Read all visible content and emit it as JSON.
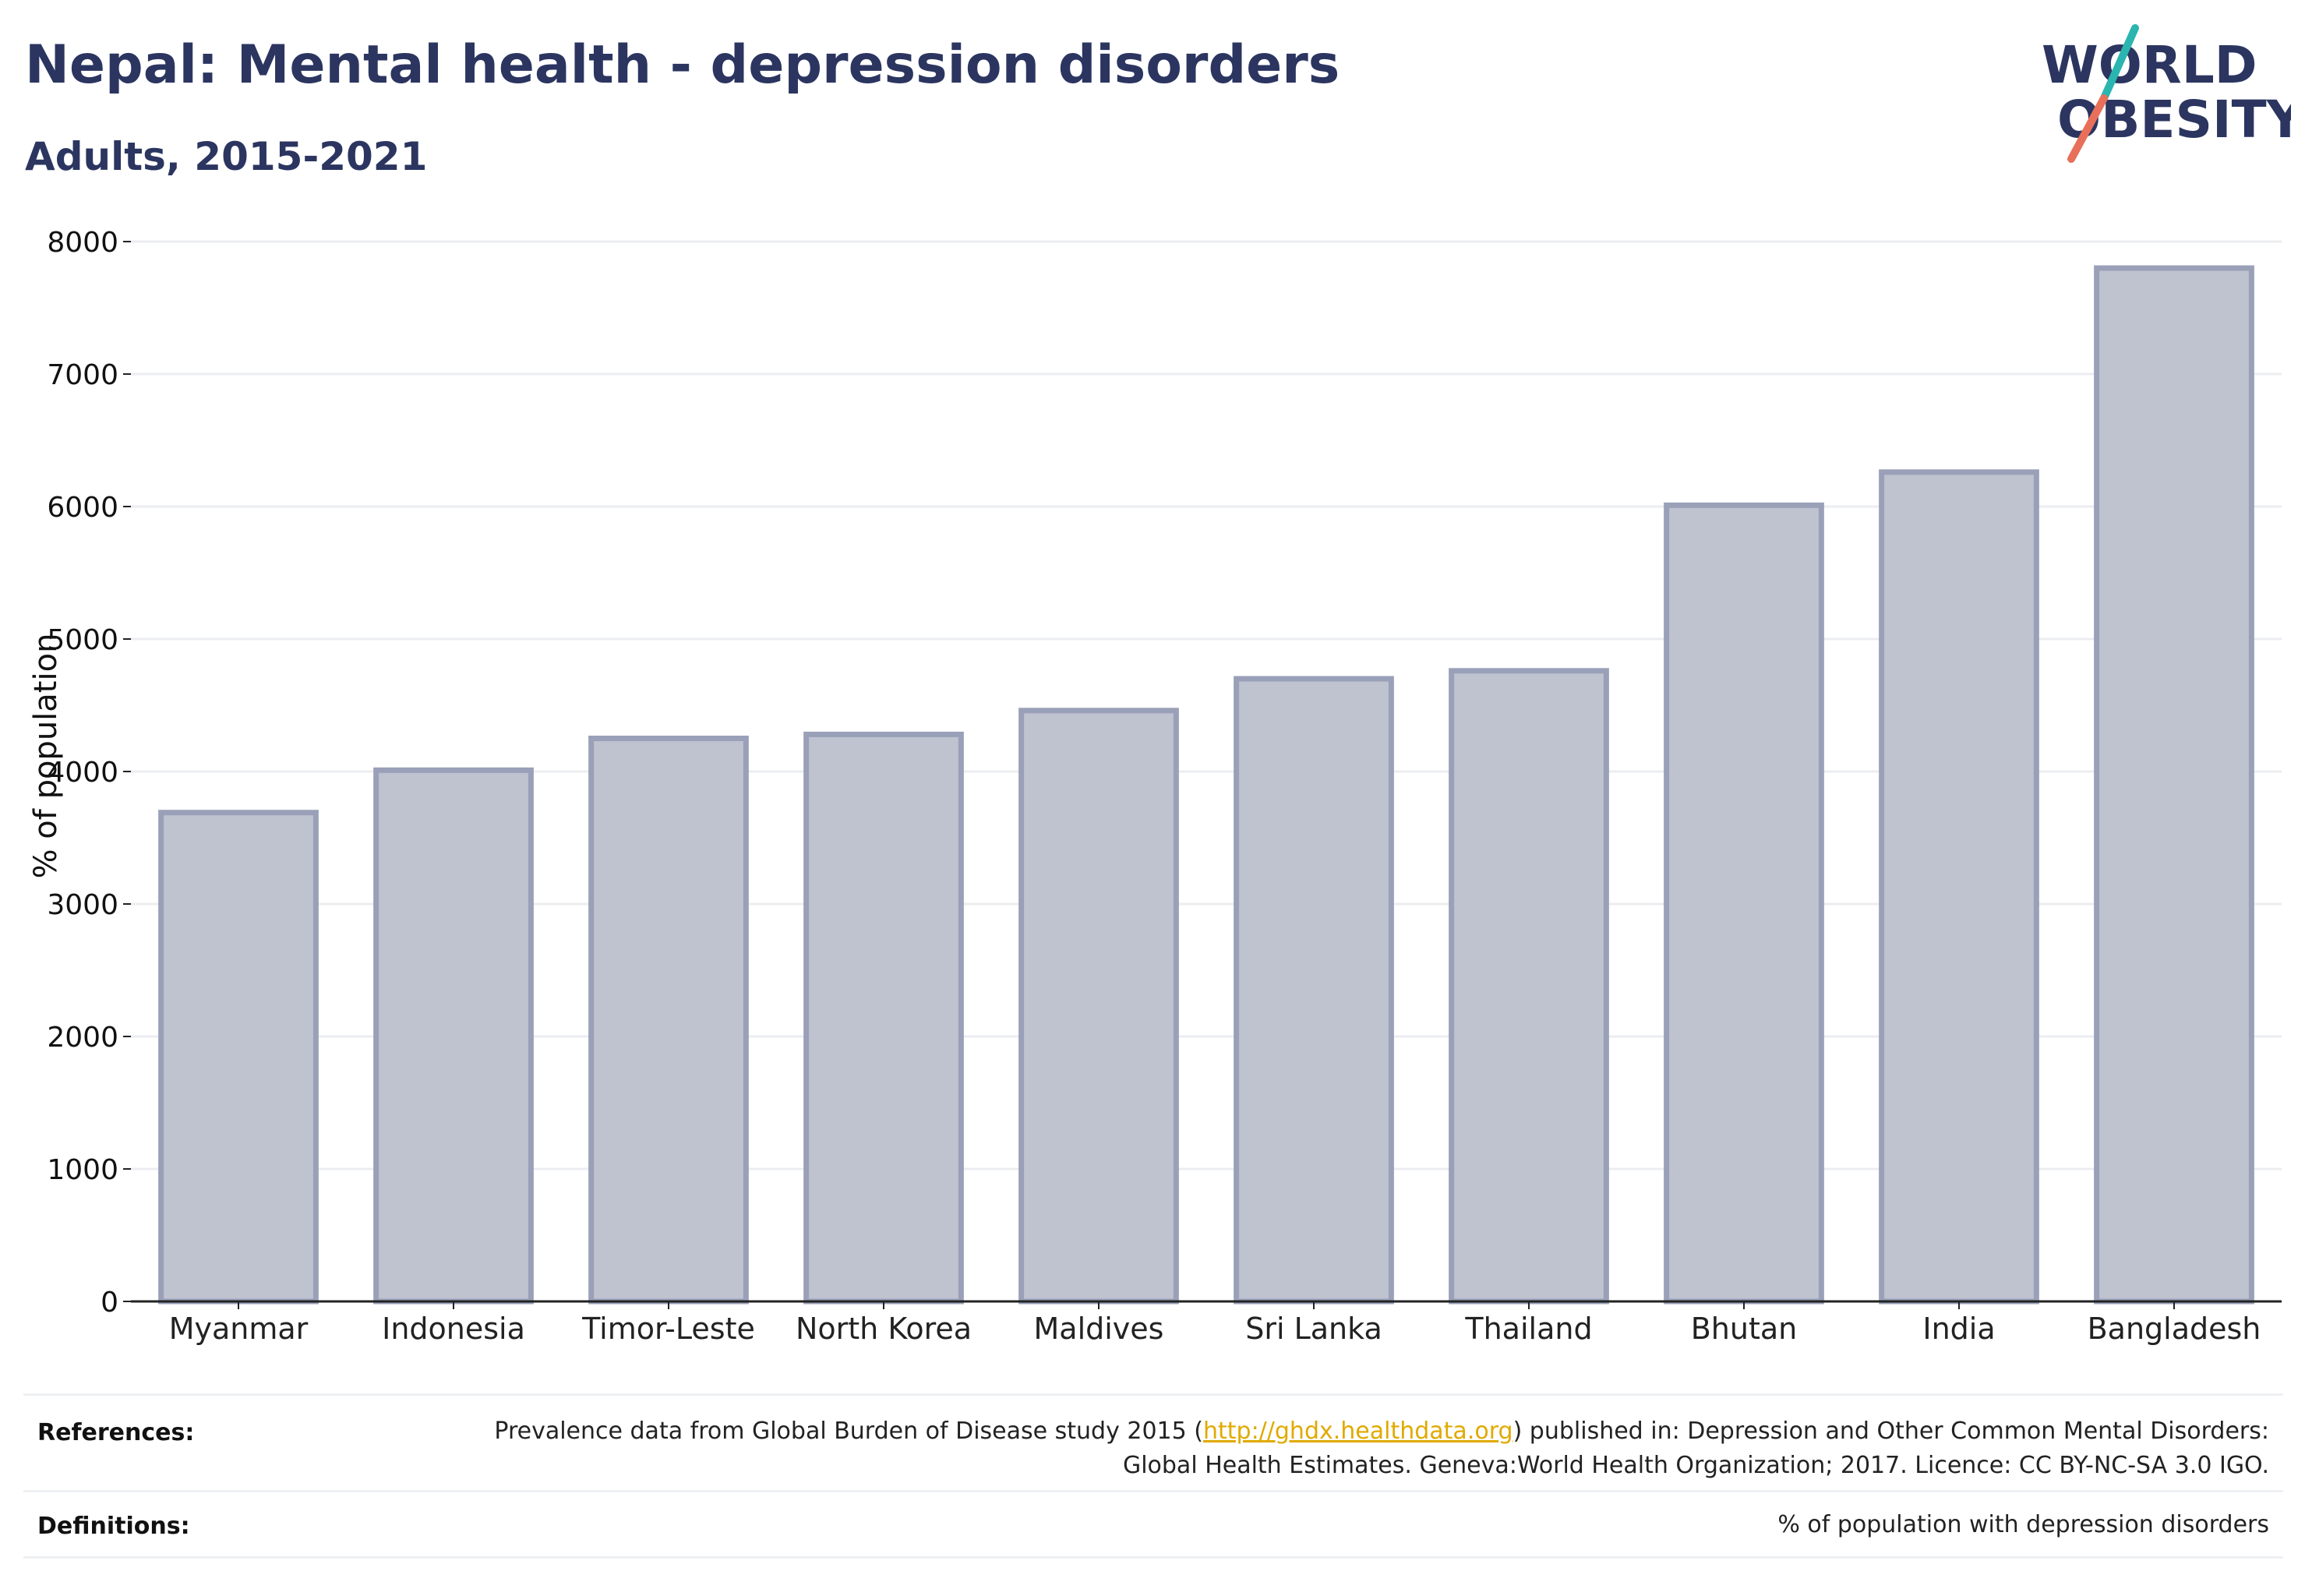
{
  "header": {
    "title": "Nepal: Mental health - depression disorders",
    "subtitle": "Adults, 2015-2021"
  },
  "logo": {
    "line1": "WORLD",
    "line2": "OBESITY",
    "colors": {
      "text": "#2b3560",
      "slash_top": "#2bb5b0",
      "slash_bottom": "#e8705a"
    }
  },
  "chart_data": {
    "type": "bar",
    "categories": [
      "Myanmar",
      "Indonesia",
      "Timor-Leste",
      "North Korea",
      "Maldives",
      "Sri Lanka",
      "Thailand",
      "Bhutan",
      "India",
      "Bangladesh"
    ],
    "values": [
      3690,
      4010,
      4250,
      4280,
      4460,
      4700,
      4760,
      6010,
      6260,
      7800
    ],
    "ylabel": "% of population",
    "xlabel": "",
    "ylim": [
      0,
      8000
    ],
    "yticks": [
      0,
      1000,
      2000,
      3000,
      4000,
      5000,
      6000,
      7000,
      8000
    ],
    "grid": true,
    "legend": "none",
    "colors": {
      "bar_fill": "#bfc2cf",
      "bar_stroke": "#99a0b8",
      "grid": "#ebedf1",
      "axis": "#222222"
    }
  },
  "footer": {
    "references_label": "References:",
    "references_text_before": "Prevalence data from Global Burden of Disease study 2015 (",
    "references_link": "http://ghdx.healthdata.org",
    "references_text_after": ") published in: Depression and Other Common Mental Disorders: Global Health Estimates. Geneva:World Health Organization; 2017. Licence: CC BY-NC-SA 3.0 IGO.",
    "definitions_label": "Definitions:",
    "definitions_text": "% of population with depression disorders"
  }
}
